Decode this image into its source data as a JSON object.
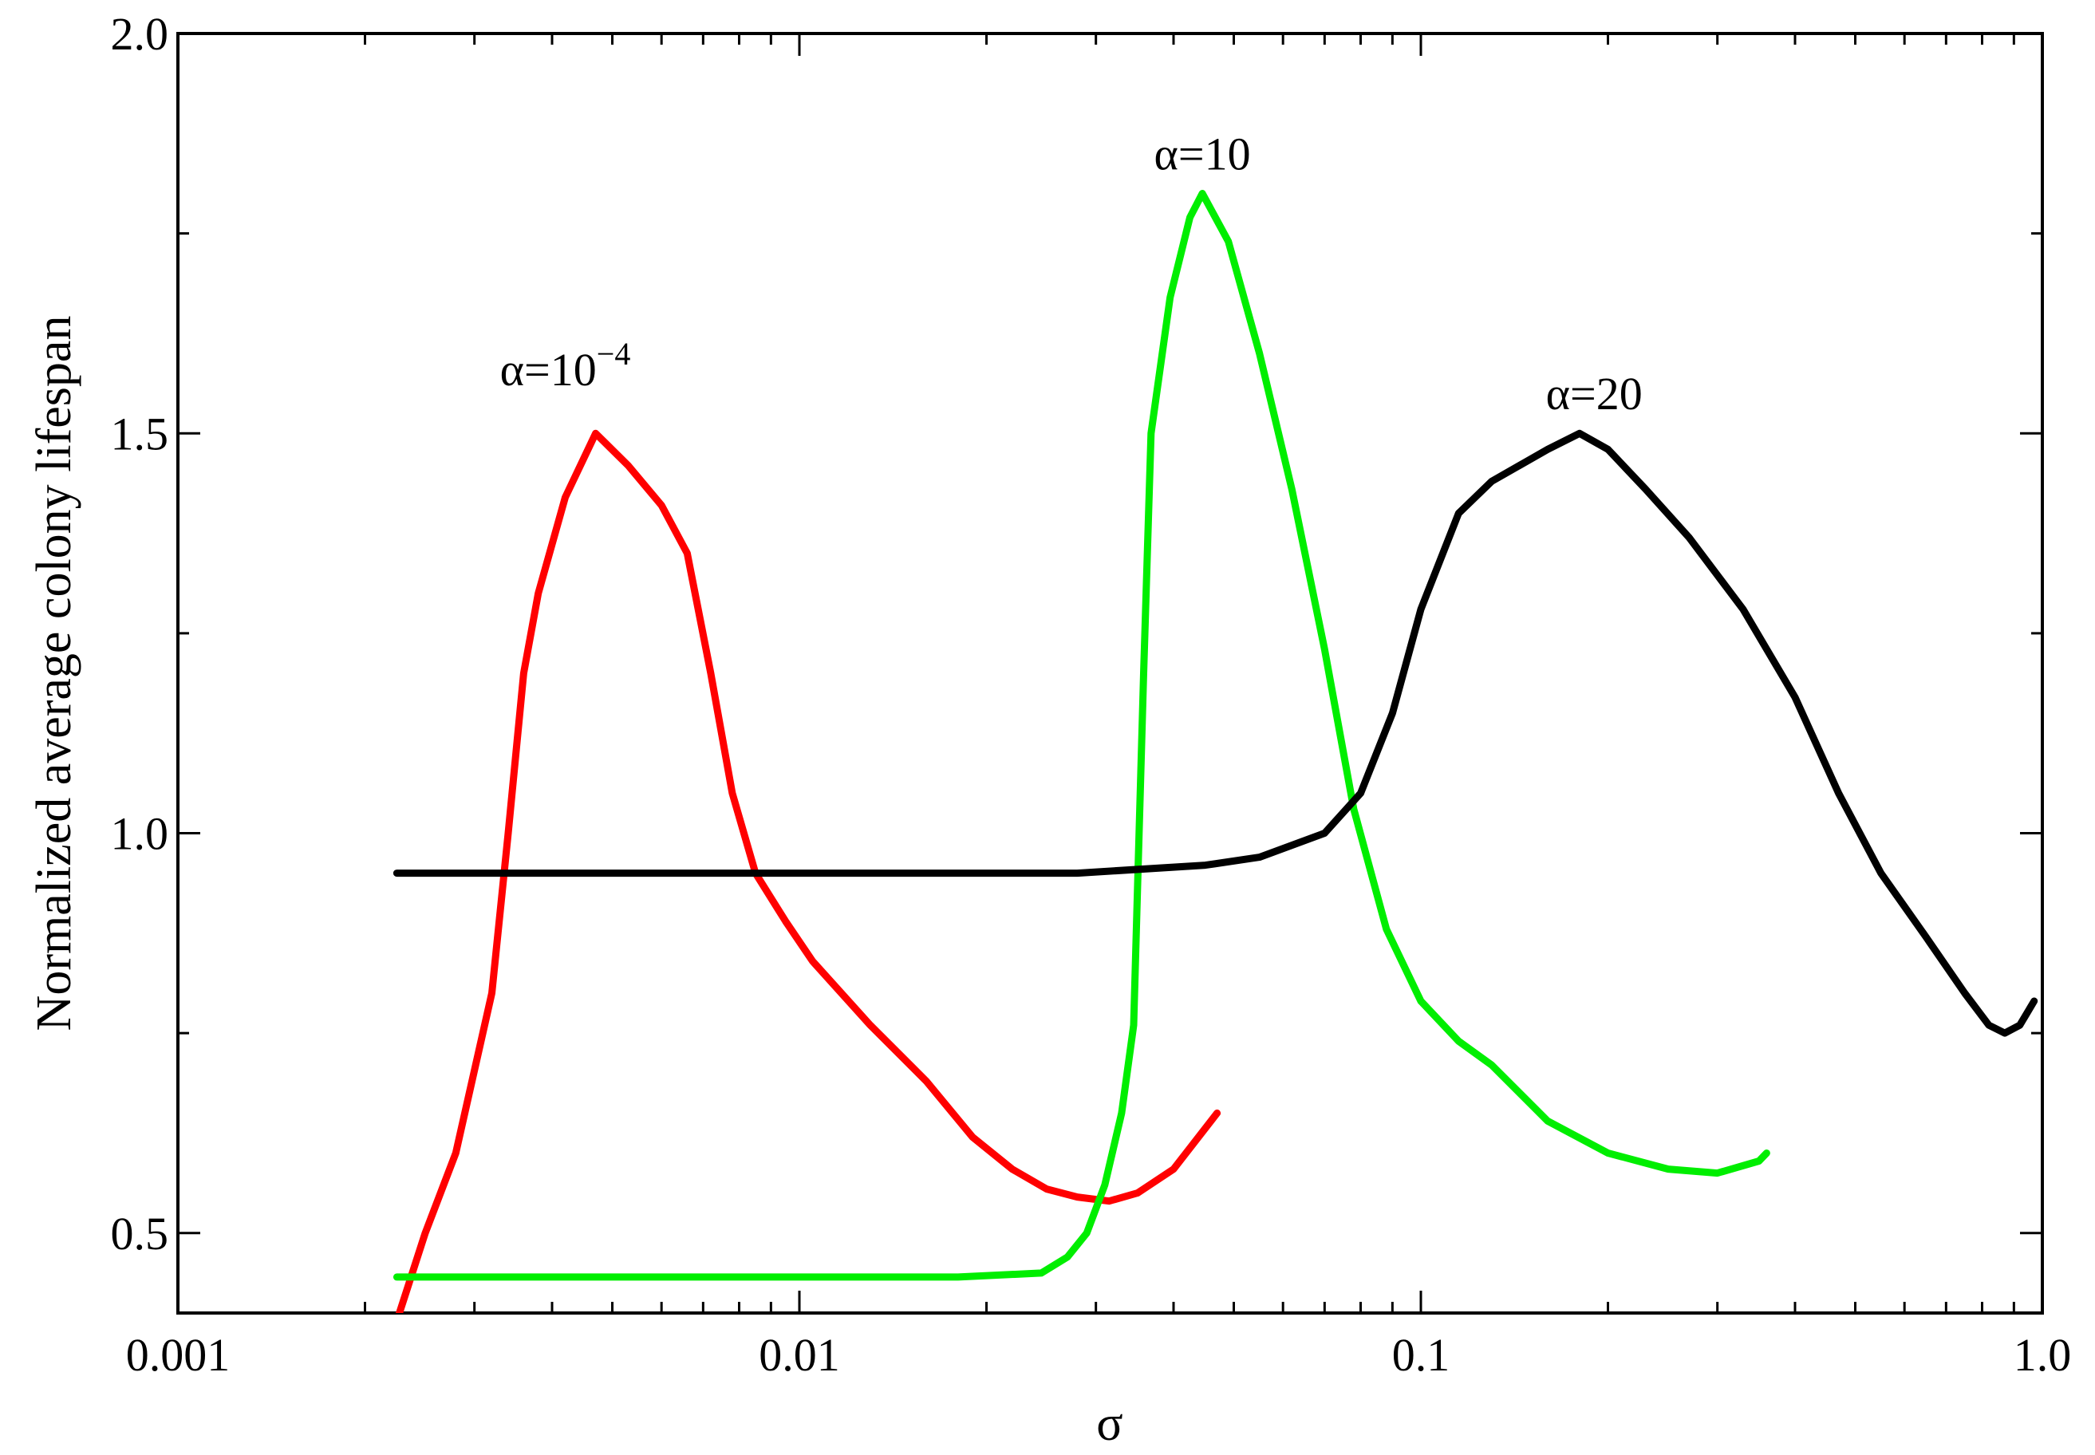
{
  "chart_data": {
    "type": "line",
    "xlabel": "σ",
    "ylabel": "Normalized average colony lifespan",
    "xscale": "log",
    "xlim": [
      0.001,
      1.0
    ],
    "ylim": [
      0.4,
      2.0
    ],
    "grid": false,
    "legend": "none",
    "x_ticks": [
      {
        "value": 0.001,
        "label": "0.001"
      },
      {
        "value": 0.01,
        "label": "0.01"
      },
      {
        "value": 0.1,
        "label": "0.1"
      },
      {
        "value": 1.0,
        "label": "1.0"
      }
    ],
    "y_ticks": [
      {
        "value": 0.5,
        "label": "0.5"
      },
      {
        "value": 1.0,
        "label": "1.0"
      },
      {
        "value": 1.5,
        "label": "1.5"
      },
      {
        "value": 2.0,
        "label": "2.0"
      }
    ],
    "annotations": [
      {
        "text": "α=10",
        "superscript": "−4",
        "x": 0.0042,
        "y": 1.56
      },
      {
        "text": "α=10",
        "superscript": "",
        "x": 0.0445,
        "y": 1.83
      },
      {
        "text": "α=20",
        "superscript": "",
        "x": 0.19,
        "y": 1.53
      }
    ],
    "series": [
      {
        "color": "#ff0000",
        "points": [
          [
            0.00225,
            0.39
          ],
          [
            0.0025,
            0.5
          ],
          [
            0.0028,
            0.6
          ],
          [
            0.0032,
            0.8
          ],
          [
            0.0034,
            1.0
          ],
          [
            0.0036,
            1.2
          ],
          [
            0.0038,
            1.3
          ],
          [
            0.0042,
            1.42
          ],
          [
            0.0047,
            1.5
          ],
          [
            0.0053,
            1.46
          ],
          [
            0.006,
            1.41
          ],
          [
            0.0066,
            1.35
          ],
          [
            0.0072,
            1.2
          ],
          [
            0.0078,
            1.05
          ],
          [
            0.0085,
            0.95
          ],
          [
            0.0095,
            0.89
          ],
          [
            0.0105,
            0.84
          ],
          [
            0.013,
            0.76
          ],
          [
            0.016,
            0.69
          ],
          [
            0.019,
            0.62
          ],
          [
            0.022,
            0.58
          ],
          [
            0.025,
            0.555
          ],
          [
            0.028,
            0.545
          ],
          [
            0.0315,
            0.54
          ],
          [
            0.035,
            0.55
          ],
          [
            0.04,
            0.58
          ],
          [
            0.047,
            0.65
          ]
        ]
      },
      {
        "color": "#00ee00",
        "points": [
          [
            0.00225,
            0.445
          ],
          [
            0.005,
            0.445
          ],
          [
            0.01,
            0.445
          ],
          [
            0.018,
            0.445
          ],
          [
            0.0245,
            0.45
          ],
          [
            0.027,
            0.47
          ],
          [
            0.029,
            0.5
          ],
          [
            0.031,
            0.56
          ],
          [
            0.033,
            0.65
          ],
          [
            0.0345,
            0.76
          ],
          [
            0.0352,
            1.0
          ],
          [
            0.0358,
            1.2
          ],
          [
            0.0368,
            1.5
          ],
          [
            0.0395,
            1.67
          ],
          [
            0.0425,
            1.77
          ],
          [
            0.0445,
            1.8
          ],
          [
            0.049,
            1.74
          ],
          [
            0.055,
            1.6
          ],
          [
            0.062,
            1.43
          ],
          [
            0.07,
            1.23
          ],
          [
            0.078,
            1.03
          ],
          [
            0.088,
            0.88
          ],
          [
            0.1,
            0.79
          ],
          [
            0.115,
            0.74
          ],
          [
            0.13,
            0.71
          ],
          [
            0.16,
            0.64
          ],
          [
            0.2,
            0.6
          ],
          [
            0.25,
            0.58
          ],
          [
            0.3,
            0.575
          ],
          [
            0.35,
            0.59
          ],
          [
            0.36,
            0.6
          ]
        ]
      },
      {
        "color": "#000000",
        "points": [
          [
            0.00225,
            0.95
          ],
          [
            0.01,
            0.95
          ],
          [
            0.028,
            0.95
          ],
          [
            0.045,
            0.96
          ],
          [
            0.055,
            0.97
          ],
          [
            0.07,
            1.0
          ],
          [
            0.08,
            1.05
          ],
          [
            0.09,
            1.15
          ],
          [
            0.1,
            1.28
          ],
          [
            0.115,
            1.4
          ],
          [
            0.13,
            1.44
          ],
          [
            0.16,
            1.48
          ],
          [
            0.18,
            1.5
          ],
          [
            0.2,
            1.48
          ],
          [
            0.23,
            1.43
          ],
          [
            0.27,
            1.37
          ],
          [
            0.33,
            1.28
          ],
          [
            0.4,
            1.17
          ],
          [
            0.47,
            1.05
          ],
          [
            0.55,
            0.95
          ],
          [
            0.65,
            0.87
          ],
          [
            0.75,
            0.8
          ],
          [
            0.82,
            0.76
          ],
          [
            0.87,
            0.75
          ],
          [
            0.92,
            0.76
          ],
          [
            0.97,
            0.79
          ]
        ]
      }
    ]
  }
}
